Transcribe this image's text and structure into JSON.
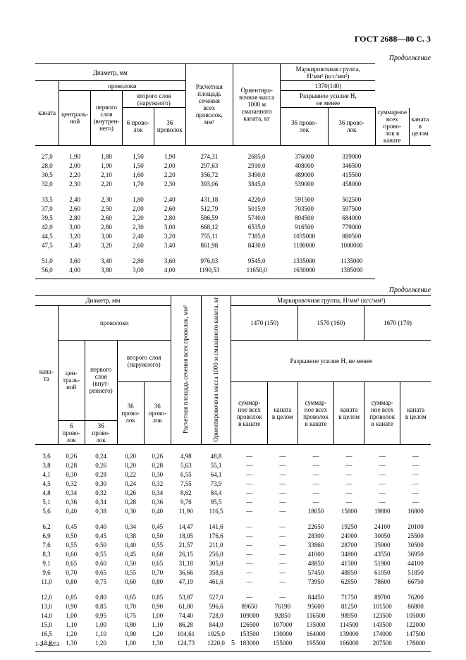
{
  "gost": "ГОСТ 2688—80 С. 3",
  "contin": "Продолжение",
  "pageNum": "5",
  "footCode": "1-2—2253",
  "t1": {
    "h_diam": "Диаметр, мм",
    "h_wire": "проволоки",
    "h_rope": "каната",
    "h_central": "централь-\nной",
    "h_first": "первого слоя\n(внутрен-\nнего)",
    "h_second": "второго слоя\n(наружного)",
    "h_6w": "6 прово-\nлок",
    "h_36w": "36 проволок",
    "h_36w2": "36 прово-\nлок",
    "h_area": "Расчетная\nплощадь\nсечения\nвсех\nпроволок,\nмм²",
    "h_mass": "Ориентиро-\nвочная масса\n1000 м\nсмазанного\nканата, кг",
    "h_mark": "Маркировочная группа,\nН/мм² (кгс/мм²)",
    "h_1370": "1370(140)",
    "h_break": "Разрывное усилие Н,\nне менее",
    "h_sumall": "суммарное\nвсех прово-\nлок в канате",
    "h_whole": "каната в\nцелом",
    "rows1": [
      [
        "27,0",
        "1,90",
        "1,80",
        "1,50",
        "1,90",
        "274,31",
        "2685,0",
        "376000",
        "319000"
      ],
      [
        "28,0",
        "2,00",
        "1,90",
        "1,50",
        "2,00",
        "297,63",
        "2910,0",
        "408000",
        "346500"
      ],
      [
        "30,5",
        "2,20",
        "2,10",
        "1,60",
        "2,20",
        "356,72",
        "3490,0",
        "489000",
        "415500"
      ],
      [
        "32,0",
        "2,30",
        "2,20",
        "1,70",
        "2,30",
        "393,06",
        "3845,0",
        "539000",
        "458000"
      ]
    ],
    "rows2": [
      [
        "33,5",
        "2,40",
        "2,30",
        "1,80",
        "2,40",
        "431,18",
        "4220,0",
        "591500",
        "502500"
      ],
      [
        "37,0",
        "2,60",
        "2,50",
        "2,00",
        "2,60",
        "512,79",
        "5015,0",
        "703500",
        "597500"
      ],
      [
        "39,5",
        "2,80",
        "2,60",
        "2,20",
        "2,80",
        "586,59",
        "5740,0",
        "804500",
        "684000"
      ],
      [
        "42,0",
        "3,00",
        "2,80",
        "2,30",
        "3,00",
        "668,12",
        "6535,0",
        "916500",
        "779000"
      ],
      [
        "44,5",
        "3,20",
        "3,00",
        "2,40",
        "3,20",
        "755,11",
        "7385,0",
        "1035000",
        "880500"
      ],
      [
        "47,5",
        "3,40",
        "3,20",
        "2,60",
        "3,40",
        "861,98",
        "8430,0",
        "1180000",
        "1000000"
      ]
    ],
    "rows3": [
      [
        "51,0",
        "3,60",
        "3,40",
        "2,80",
        "3,60",
        "976,03",
        "9545,0",
        "1335000",
        "1135000"
      ],
      [
        "56,0",
        "4,00",
        "3,80",
        "3,00",
        "4,00",
        "1190,53",
        "11650,0",
        "1630000",
        "1385000"
      ]
    ]
  },
  "t2": {
    "h_diam": "Диаметр, мм",
    "h_wire": "проволоки",
    "h_rope": "кана-\nта",
    "h_central": "цен-\nтраль-\nной",
    "h_first": "первого\nслоя\n(внут-\nреннего)",
    "h_second": "второго слоя\n(наружного)",
    "h_6w": "6\nпрово-\nлок",
    "h_36w": "36\nпрово-\nлок",
    "h_area": "Расчетная площадь сечения\nвсех проволок, мм²",
    "h_mass": "Ориентировочная масса\n1000 м смазанного\nканата, кг",
    "h_mark": "Маркировочная группа, Н/мм² (кгс/мм²)",
    "h_1470": "1470 (150)",
    "h_1570": "1570 (160)",
    "h_1670": "1670 (170)",
    "h_break": "Разрывное усилие H, не менее",
    "h_sum": "суммар-\nное всех\nпроволок\nв канате",
    "h_wh": "каната\nв целом",
    "groups": [
      [
        [
          "3,6",
          "0,26",
          "0,24",
          "0,20",
          "0,26",
          "4,98",
          "48,8",
          "—",
          "—",
          "—",
          "—",
          "—",
          "—"
        ],
        [
          "3,8",
          "0,28",
          "0,26",
          "0,20",
          "0,28",
          "5,63",
          "55,1",
          "—",
          "—",
          "—",
          "—",
          "—",
          "—"
        ],
        [
          "4,1",
          "0,30",
          "0,28",
          "0,22",
          "0,30",
          "6,55",
          "64,1",
          "—",
          "—",
          "—",
          "—",
          "—",
          "—"
        ],
        [
          "4,5",
          "0,32",
          "0,30",
          "0,24",
          "0,32",
          "7,55",
          "73,9",
          "—",
          "—",
          "—",
          "—",
          "—",
          "—"
        ],
        [
          "4,8",
          "0,34",
          "0,32",
          "0,26",
          "0,34",
          "8,62",
          "84,4",
          "—",
          "—",
          "—",
          "—",
          "—",
          "—"
        ],
        [
          "5,1",
          "0,36",
          "0,34",
          "0,28",
          "0,36",
          "9,76",
          "95,5",
          "—",
          "—",
          "—",
          "—",
          "—",
          "—"
        ],
        [
          "5,6",
          "0,40",
          "0,38",
          "0,30",
          "0,40",
          "11,90",
          "116,5",
          "—",
          "—",
          "18650",
          "15800",
          "19800",
          "16800"
        ]
      ],
      [
        [
          "6,2",
          "0,45",
          "0,40",
          "0,34",
          "0,45",
          "14,47",
          "141,6",
          "—",
          "—",
          "22650",
          "19250",
          "24100",
          "20100"
        ],
        [
          "6,9",
          "0,50",
          "0,45",
          "0,38",
          "0,50",
          "18,05",
          "176,6",
          "—",
          "—",
          "28300",
          "24000",
          "30050",
          "25500"
        ],
        [
          "7,6",
          "0,55",
          "0,50",
          "0,40",
          "0,55",
          "21,57",
          "211,0",
          "—",
          "—",
          "33860",
          "28700",
          "35900",
          "30500"
        ],
        [
          "8,3",
          "0,60",
          "0,55",
          "0,45",
          "0,60",
          "26,15",
          "256,0",
          "—",
          "—",
          "41000",
          "34800",
          "43550",
          "36950"
        ],
        [
          "9,1",
          "0,65",
          "0,60",
          "0,50",
          "0,65",
          "31,18",
          "305,0",
          "—",
          "—",
          "48850",
          "41500",
          "51900",
          "44100"
        ],
        [
          "9,6",
          "0,70",
          "0,65",
          "0,55",
          "0,70",
          "36,66",
          "358,6",
          "—",
          "—",
          "57450",
          "48850",
          "61050",
          "51850"
        ],
        [
          "11,0",
          "0,80",
          "0,75",
          "0,60",
          "0,80",
          "47,19",
          "461,6",
          "—",
          "—",
          "73950",
          "62850",
          "78600",
          "66750"
        ]
      ],
      [
        [
          "12,0",
          "0,85",
          "0,80",
          "0,65",
          "0,85",
          "53,87",
          "527,0",
          "—",
          "—",
          "84450",
          "71750",
          "89700",
          "76200"
        ],
        [
          "13,0",
          "0,90",
          "0,85",
          "0,70",
          "0,90",
          "61,00",
          "596,6",
          "89650",
          "76190",
          "95600",
          "81250",
          "101500",
          "86800"
        ],
        [
          "14,0",
          "1,00",
          "0,95",
          "0,75",
          "1,00",
          "74,40",
          "728,0",
          "109000",
          "92850",
          "116500",
          "98950",
          "123500",
          "105000"
        ],
        [
          "15,0",
          "1,10",
          "1,00",
          "0,80",
          "1,10",
          "86,28",
          "844,0",
          "126500",
          "107000",
          "135000",
          "114500",
          "143500",
          "122000"
        ],
        [
          "16,5",
          "1,20",
          "1,10",
          "0,90",
          "1,20",
          "104,61",
          "1025,0",
          "153500",
          "130000",
          "164000",
          "139000",
          "174000",
          "147500"
        ],
        [
          "18,0",
          "1,30",
          "1,20",
          "1,00",
          "1,30",
          "124,73",
          "1220,0",
          "183000",
          "155000",
          "195500",
          "166000",
          "207500",
          "176000"
        ]
      ]
    ]
  }
}
